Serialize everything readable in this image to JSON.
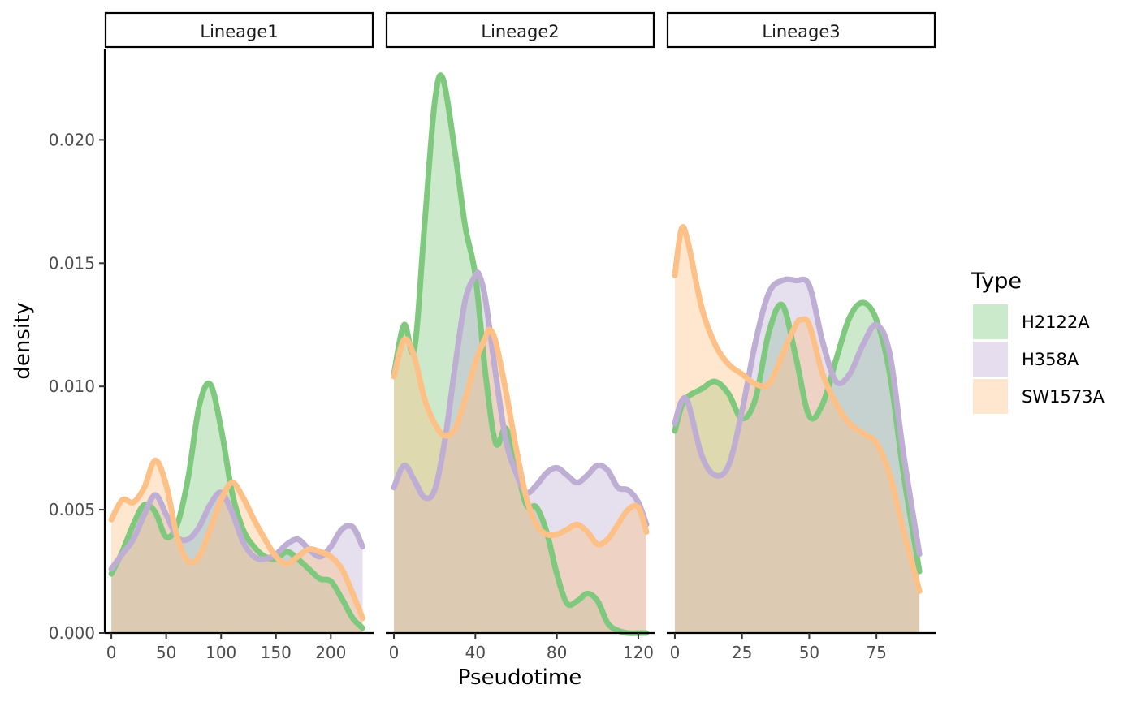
{
  "chart_data": {
    "type": "area",
    "xlabel": "Pseudotime",
    "ylabel": "density",
    "ylim": [
      0,
      0.0237
    ],
    "y_ticks": [
      "0.000",
      "0.005",
      "0.010",
      "0.015",
      "0.020"
    ],
    "y_tick_values": [
      0,
      0.005,
      0.01,
      0.015,
      0.02
    ],
    "legend": {
      "title": "Type",
      "position": "right",
      "entries": [
        {
          "name": "H2122A",
          "line_color": "#7FC97F",
          "fill_color": "#CBE9CB"
        },
        {
          "name": "H358A",
          "line_color": "#BEAED4",
          "fill_color": "#E6DEEF"
        },
        {
          "name": "SW1573A",
          "line_color": "#FDC086",
          "fill_color": "#FEE6CF"
        }
      ]
    },
    "panels": [
      {
        "strip": "Lineage1",
        "xlim": [
          -6,
          239
        ],
        "x_ticks": [
          "0",
          "50",
          "100",
          "150",
          "200"
        ],
        "x_tick_values": [
          0,
          50,
          100,
          150,
          200
        ],
        "series": [
          {
            "name": "H2122A",
            "x": [
              0,
              10,
              20,
              30,
              40,
              50,
              60,
              70,
              80,
              90,
              100,
              110,
              120,
              130,
              140,
              150,
              160,
              170,
              180,
              190,
              200,
              210,
              220,
              229
            ],
            "y": [
              0.0024,
              0.0033,
              0.0044,
              0.0052,
              0.0049,
              0.0039,
              0.0044,
              0.0063,
              0.0092,
              0.0101,
              0.0083,
              0.0057,
              0.0042,
              0.0035,
              0.0031,
              0.003,
              0.0033,
              0.003,
              0.0026,
              0.0022,
              0.0021,
              0.0014,
              0.0006,
              0.0002
            ]
          },
          {
            "name": "H358A",
            "x": [
              0,
              10,
              20,
              30,
              40,
              50,
              60,
              70,
              80,
              90,
              100,
              110,
              120,
              130,
              140,
              150,
              160,
              170,
              180,
              190,
              200,
              210,
              220,
              229
            ],
            "y": [
              0.0026,
              0.0032,
              0.0038,
              0.0048,
              0.0056,
              0.0048,
              0.0039,
              0.0038,
              0.0043,
              0.0052,
              0.0057,
              0.0049,
              0.0037,
              0.0031,
              0.003,
              0.0032,
              0.0036,
              0.0038,
              0.0034,
              0.0031,
              0.0035,
              0.0042,
              0.0043,
              0.0035
            ]
          },
          {
            "name": "SW1573A",
            "x": [
              0,
              10,
              20,
              30,
              40,
              50,
              60,
              70,
              80,
              90,
              100,
              110,
              120,
              130,
              140,
              150,
              160,
              170,
              180,
              190,
              200,
              210,
              220,
              229
            ],
            "y": [
              0.0046,
              0.0054,
              0.0053,
              0.0059,
              0.007,
              0.006,
              0.0039,
              0.0029,
              0.0031,
              0.0042,
              0.0054,
              0.0061,
              0.0055,
              0.0046,
              0.0038,
              0.0031,
              0.0028,
              0.0031,
              0.0034,
              0.0033,
              0.0031,
              0.0026,
              0.0016,
              0.0006
            ]
          }
        ]
      },
      {
        "strip": "Lineage2",
        "xlim": [
          -4,
          128
        ],
        "x_ticks": [
          "0",
          "40",
          "80",
          "120"
        ],
        "x_tick_values": [
          0,
          40,
          80,
          120
        ],
        "series": [
          {
            "name": "H2122A",
            "x": [
              0,
              5,
              10,
              15,
              20,
              24,
              30,
              35,
              40,
              45,
              50,
              55,
              60,
              65,
              70,
              75,
              80,
              85,
              90,
              95,
              100,
              105,
              110,
              115,
              120,
              124
            ],
            "y": [
              0.0105,
              0.0125,
              0.0115,
              0.0165,
              0.0215,
              0.0225,
              0.0195,
              0.0165,
              0.0145,
              0.0105,
              0.0077,
              0.0083,
              0.0068,
              0.0052,
              0.0051,
              0.0041,
              0.0024,
              0.0012,
              0.0013,
              0.0016,
              0.0013,
              0.0004,
              0.0001,
              0,
              0,
              0
            ]
          },
          {
            "name": "H358A",
            "x": [
              0,
              5,
              10,
              15,
              20,
              25,
              30,
              35,
              40,
              42,
              45,
              50,
              55,
              60,
              65,
              70,
              75,
              80,
              85,
              90,
              95,
              100,
              105,
              110,
              115,
              120,
              124
            ],
            "y": [
              0.0059,
              0.0068,
              0.0062,
              0.0055,
              0.0058,
              0.0078,
              0.0108,
              0.0135,
              0.0145,
              0.0145,
              0.0135,
              0.0105,
              0.0078,
              0.0065,
              0.0057,
              0.006,
              0.0065,
              0.0067,
              0.0064,
              0.0061,
              0.0064,
              0.0068,
              0.0066,
              0.0059,
              0.0058,
              0.0053,
              0.0044
            ]
          },
          {
            "name": "SW1573A",
            "x": [
              0,
              5,
              10,
              15,
              20,
              25,
              30,
              35,
              40,
              45,
              47,
              50,
              55,
              60,
              65,
              70,
              75,
              80,
              85,
              90,
              95,
              100,
              105,
              110,
              115,
              120,
              124
            ],
            "y": [
              0.0104,
              0.0119,
              0.0112,
              0.0095,
              0.0085,
              0.008,
              0.0083,
              0.0095,
              0.011,
              0.012,
              0.0123,
              0.0118,
              0.0098,
              0.0075,
              0.0055,
              0.0044,
              0.004,
              0.004,
              0.0042,
              0.0044,
              0.0041,
              0.0036,
              0.0038,
              0.0044,
              0.005,
              0.0051,
              0.0041
            ]
          }
        ]
      },
      {
        "strip": "Lineage3",
        "xlim": [
          -3,
          97
        ],
        "x_ticks": [
          "0",
          "25",
          "50",
          "75"
        ],
        "x_tick_values": [
          0,
          25,
          50,
          75
        ],
        "series": [
          {
            "name": "H2122A",
            "x": [
              0,
              2.5,
              5,
              10,
              15,
              20,
              25,
              30,
              35,
              40,
              45,
              50,
              55,
              60,
              65,
              70,
              75,
              80,
              85,
              91
            ],
            "y": [
              0.0082,
              0.0092,
              0.0096,
              0.0099,
              0.0102,
              0.0097,
              0.0087,
              0.0095,
              0.0122,
              0.0133,
              0.0112,
              0.0088,
              0.0093,
              0.0111,
              0.0128,
              0.0134,
              0.0127,
              0.0105,
              0.0065,
              0.0025
            ]
          },
          {
            "name": "H358A",
            "x": [
              0,
              2.5,
              5,
              10,
              15,
              20,
              25,
              30,
              35,
              40,
              45,
              50,
              55,
              60,
              65,
              70,
              75,
              80,
              85,
              91
            ],
            "y": [
              0.0085,
              0.0094,
              0.0093,
              0.0072,
              0.0064,
              0.0068,
              0.009,
              0.0118,
              0.0138,
              0.0143,
              0.0143,
              0.0141,
              0.0118,
              0.0102,
              0.0105,
              0.0117,
              0.0125,
              0.0113,
              0.0073,
              0.0032
            ]
          },
          {
            "name": "SW1573A",
            "x": [
              0,
              2.5,
              5,
              10,
              15,
              20,
              25,
              30,
              35,
              40,
              45,
              47,
              50,
              55,
              60,
              65,
              70,
              75,
              80,
              85,
              91
            ],
            "y": [
              0.0145,
              0.0164,
              0.0158,
              0.0132,
              0.0117,
              0.0109,
              0.0105,
              0.0101,
              0.0101,
              0.0113,
              0.0125,
              0.0127,
              0.0125,
              0.0105,
              0.0093,
              0.0085,
              0.0081,
              0.0077,
              0.0064,
              0.0042,
              0.0017
            ]
          }
        ]
      }
    ]
  }
}
